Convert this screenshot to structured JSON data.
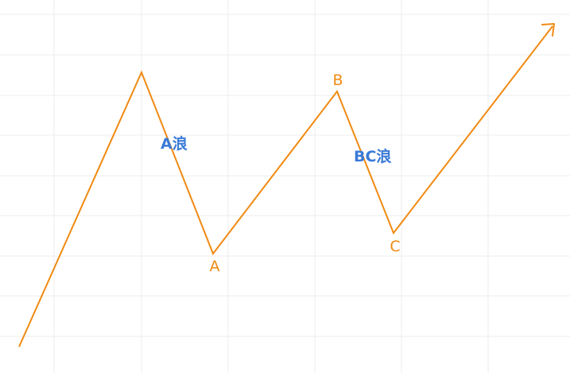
{
  "colors": {
    "line": "#f08a12",
    "point_label": "#f08a12",
    "wave_label": "#3a7ad8",
    "grid": "#ececec"
  },
  "diagram": {
    "point_labels": {
      "a": "A",
      "b": "B",
      "c": "C"
    },
    "wave_labels": {
      "a_wave": "A浪",
      "bc_wave": "BC浪"
    }
  }
}
